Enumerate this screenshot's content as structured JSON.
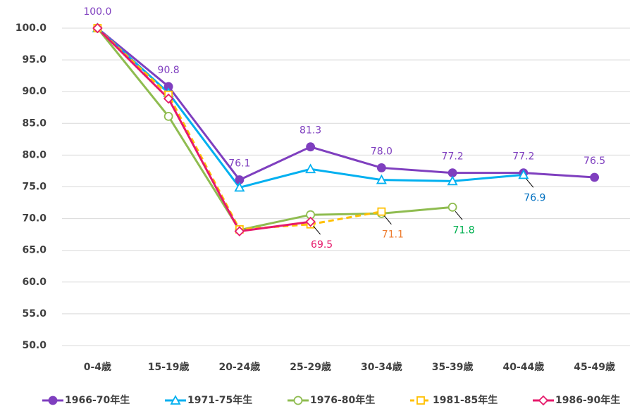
{
  "chart_data": {
    "type": "line",
    "categories": [
      "0-4歳",
      "15-19歳",
      "20-24歳",
      "25-29歳",
      "30-34歳",
      "35-39歳",
      "40-44歳",
      "45-49歳"
    ],
    "ylim": [
      50,
      100
    ],
    "yticks": [
      {
        "value": 50,
        "label": "50.0"
      },
      {
        "value": 55,
        "label": "55.0"
      },
      {
        "value": 60,
        "label": "60.0"
      },
      {
        "value": 65,
        "label": "65.0"
      },
      {
        "value": 70,
        "label": "70.0"
      },
      {
        "value": 75,
        "label": "75.0"
      },
      {
        "value": 80,
        "label": "80.0"
      },
      {
        "value": 85,
        "label": "85.0"
      },
      {
        "value": 90,
        "label": "90.0"
      },
      {
        "value": 95,
        "label": "95.0"
      },
      {
        "value": 100,
        "label": "100.0"
      }
    ],
    "grid": true,
    "legend": "bottom",
    "series": [
      {
        "name": "1966-70年生",
        "color": "#7f3fbf",
        "label_color": "#7f3fbf",
        "marker": "circle",
        "filled": true,
        "dashed": false,
        "values": [
          100,
          90.8,
          76.1,
          81.3,
          78.0,
          77.2,
          77.2,
          76.5
        ],
        "value_labels": [
          "100.0",
          "90.8",
          "76.1",
          "81.3",
          "78.0",
          "77.2",
          "77.2",
          "76.5"
        ]
      },
      {
        "name": "1971-75年生",
        "color": "#00b0f0",
        "label_color": "#0070c0",
        "marker": "triangle",
        "filled": false,
        "dashed": false,
        "values": [
          100,
          89.8,
          74.9,
          77.8,
          76.1,
          75.9,
          76.9,
          null
        ],
        "value_labels": [
          null,
          null,
          null,
          null,
          null,
          null,
          "76.9",
          null
        ]
      },
      {
        "name": "1976-80年生",
        "color": "#8fbc50",
        "label_color": "#00b050",
        "marker": "circle",
        "filled": false,
        "dashed": false,
        "values": [
          100,
          86.1,
          68.2,
          70.6,
          70.8,
          71.8,
          null,
          null
        ],
        "value_labels": [
          null,
          null,
          null,
          null,
          null,
          "71.8",
          null,
          null
        ]
      },
      {
        "name": "1981-85年生",
        "color": "#ffc000",
        "label_color": "#ed7d31",
        "marker": "square",
        "filled": false,
        "dashed": true,
        "values": [
          100,
          89.5,
          68.3,
          69.1,
          71.1,
          null,
          null,
          null
        ],
        "value_labels": [
          null,
          null,
          null,
          null,
          "71.1",
          null,
          null,
          null
        ]
      },
      {
        "name": "1986-90年生",
        "color": "#e6196b",
        "label_color": "#e6196b",
        "marker": "diamond",
        "filled": false,
        "dashed": false,
        "values": [
          100,
          88.9,
          68.0,
          69.5,
          null,
          null,
          null,
          null
        ],
        "value_labels": [
          null,
          null,
          null,
          "69.5",
          null,
          null,
          null,
          null
        ]
      }
    ]
  }
}
